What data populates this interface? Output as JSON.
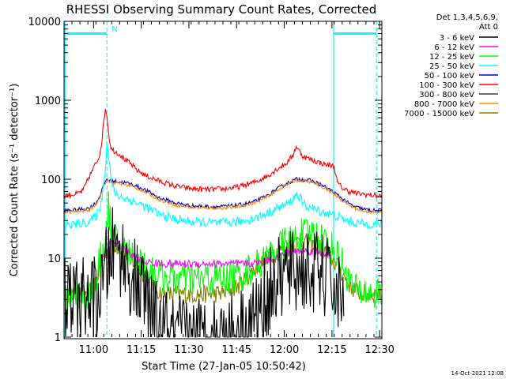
{
  "chart_data": {
    "type": "line",
    "title": "RHESSI Observing Summary Count Rates, Corrected",
    "xlabel": "Start Time (27-Jan-05 10:50:42)",
    "ylabel": "Corrected Count Rate (s⁻¹ detector⁻¹)",
    "y_scale": "log",
    "ylim": [
      1,
      10000
    ],
    "xlim_minutes": [
      0,
      100
    ],
    "x_ticks": [
      {
        "label": "11:00",
        "minute": 9.3
      },
      {
        "label": "11:15",
        "minute": 24.3
      },
      {
        "label": "11:30",
        "minute": 39.3
      },
      {
        "label": "11:45",
        "minute": 54.3
      },
      {
        "label": "12:00",
        "minute": 69.3
      },
      {
        "label": "12:15",
        "minute": 84.3
      },
      {
        "label": "12:30",
        "minute": 99.3
      }
    ],
    "y_ticks": [
      "1",
      "10",
      "100",
      "1000",
      "10000"
    ],
    "grid": false,
    "legend_header": [
      "Det 1,3,4,5,6,9,",
      "Att 0"
    ],
    "legend_position": "right",
    "series": [
      {
        "name": "3 - 6 keV",
        "color": "#000000",
        "x": [
          0,
          10,
          12,
          13.5,
          15,
          17,
          19,
          21,
          24,
          26,
          27,
          31,
          34,
          38,
          45,
          50,
          55,
          59,
          62,
          63,
          64,
          66,
          68,
          70,
          72,
          74,
          76,
          78,
          80,
          82,
          84,
          86,
          88,
          90,
          100
        ],
        "y": [
          3,
          3,
          4,
          8,
          13,
          13,
          9,
          6,
          4,
          3,
          1.8,
          1.3,
          1,
          1,
          1,
          1,
          1.3,
          1.6,
          2.2,
          3,
          3.5,
          4.5,
          5.5,
          6.2,
          6.8,
          6.9,
          6.8,
          6.6,
          6.3,
          5.8,
          5.0,
          3.5,
          2.5,
          null,
          null
        ]
      },
      {
        "name": "6 - 12 keV",
        "color": "#ff00ff",
        "x": [
          0,
          8,
          10,
          12,
          13.5,
          15,
          17,
          19,
          21,
          23,
          25,
          30,
          40,
          50,
          55,
          60,
          63,
          66,
          69,
          72,
          74,
          76,
          78,
          80,
          82,
          84,
          86,
          88,
          90,
          92,
          94,
          96,
          100
        ],
        "y": [
          null,
          null,
          null,
          10,
          13,
          17,
          15,
          13,
          11,
          10,
          9,
          8.5,
          8.5,
          8.5,
          8.5,
          8.6,
          9,
          10,
          11,
          12,
          12.3,
          12.4,
          12.3,
          12,
          11.5,
          10.5,
          null,
          null,
          null,
          null,
          null,
          null,
          null
        ]
      },
      {
        "name": "12 - 25 keV",
        "color": "#00ff00",
        "x": [
          0,
          8,
          10,
          11,
          12,
          13,
          13.5,
          14,
          15,
          17,
          19,
          21,
          24,
          27,
          30,
          35,
          40,
          45,
          50,
          55,
          58,
          61,
          64,
          66,
          68,
          70,
          72,
          74,
          76,
          78,
          80,
          82,
          84,
          86,
          88,
          90,
          92,
          96,
          100
        ],
        "y": [
          3.5,
          3.5,
          4,
          8,
          12,
          18,
          28,
          45,
          20,
          15,
          13,
          11,
          9,
          7,
          6,
          5.5,
          5.5,
          5.5,
          5.5,
          6,
          7,
          8,
          10,
          12,
          14,
          16,
          17,
          19,
          20,
          21,
          19,
          17,
          14,
          11,
          8,
          5,
          3.8,
          3.6,
          3.5
        ]
      },
      {
        "name": "25 - 50 keV",
        "color": "#00ffff",
        "x": [
          0,
          4,
          8,
          10,
          11,
          12,
          13,
          13.5,
          14,
          15,
          16,
          17,
          19,
          21,
          24,
          27,
          30,
          35,
          40,
          45,
          50,
          55,
          60,
          64,
          67,
          70,
          72,
          73,
          74,
          75,
          76,
          78,
          80,
          82,
          84,
          85,
          86,
          88,
          90,
          92,
          95,
          98,
          100
        ],
        "y": [
          26,
          27,
          29,
          34,
          40,
          60,
          150,
          290,
          200,
          85,
          68,
          62,
          58,
          54,
          48,
          42,
          36,
          31,
          29,
          28,
          28,
          29,
          32,
          37,
          43,
          48,
          55,
          65,
          60,
          50,
          46,
          43,
          40,
          38,
          36,
          35,
          34,
          31,
          29,
          28,
          27,
          27,
          27
        ]
      },
      {
        "name": "50 - 100 keV",
        "color": "#0000cc",
        "x": [
          0,
          4,
          8,
          10,
          11,
          12,
          13,
          13.5,
          14,
          15,
          17,
          19,
          21,
          24,
          27,
          30,
          35,
          40,
          45,
          50,
          55,
          60,
          64,
          67,
          70,
          72,
          73,
          74,
          76,
          78,
          80,
          82,
          84,
          86,
          88,
          90,
          92,
          95,
          98,
          100
        ],
        "y": [
          40,
          41,
          43,
          50,
          58,
          75,
          95,
          100,
          98,
          95,
          93,
          91,
          87,
          78,
          68,
          58,
          50,
          46,
          45,
          45,
          47,
          52,
          62,
          75,
          88,
          96,
          100,
          100,
          98,
          95,
          88,
          80,
          72,
          63,
          55,
          48,
          44,
          41,
          40,
          40
        ]
      },
      {
        "name": "100 - 300 keV",
        "color": "#ff0000",
        "x": [
          0,
          4,
          6,
          8,
          9,
          10,
          11,
          12,
          12.5,
          13,
          13.5,
          14,
          14.5,
          15,
          16,
          17,
          18,
          19,
          21,
          23,
          26,
          30,
          35,
          40,
          45,
          50,
          55,
          60,
          64,
          67,
          70,
          72,
          73,
          74,
          75,
          76,
          78,
          80,
          82,
          84,
          85,
          86,
          88,
          90,
          92,
          95,
          98,
          100
        ],
        "y": [
          62,
          65,
          72,
          110,
          130,
          160,
          190,
          320,
          550,
          780,
          650,
          400,
          280,
          240,
          225,
          215,
          200,
          180,
          155,
          130,
          110,
          95,
          82,
          76,
          74,
          75,
          80,
          92,
          110,
          135,
          160,
          200,
          260,
          230,
          200,
          190,
          175,
          165,
          155,
          150,
          145,
          90,
          75,
          70,
          66,
          64,
          62,
          61
        ]
      },
      {
        "name": "300 - 800 keV",
        "color": "#3c3c3c",
        "x": [],
        "y": []
      },
      {
        "name": "800 - 7000 keV",
        "color": "#ff8c00",
        "x": [
          0,
          4,
          8,
          10,
          11,
          12,
          13,
          13.5,
          14,
          15,
          17,
          19,
          21,
          24,
          27,
          30,
          35,
          40,
          45,
          50,
          55,
          60,
          64,
          67,
          70,
          72,
          73,
          74,
          76,
          78,
          80,
          82,
          84,
          86,
          88,
          90,
          92,
          95,
          98,
          100
        ],
        "y": [
          38,
          39,
          41,
          48,
          56,
          72,
          90,
          95,
          93,
          90,
          88,
          86,
          82,
          74,
          64,
          55,
          47,
          44,
          43,
          43,
          45,
          50,
          60,
          72,
          85,
          93,
          97,
          97,
          95,
          92,
          85,
          77,
          69,
          60,
          52,
          46,
          42,
          39,
          38,
          38
        ]
      },
      {
        "name": "7000 - 15000 keV",
        "color": "#808000",
        "x": [
          0,
          5,
          8,
          10,
          11,
          12,
          13,
          14,
          15,
          16,
          17,
          19,
          21,
          23,
          25,
          27,
          29,
          31,
          33,
          36,
          40,
          45,
          50,
          55,
          58,
          61,
          64,
          67,
          70,
          72,
          74,
          76,
          78,
          80,
          82,
          84,
          86,
          88,
          90,
          92,
          95,
          100
        ],
        "y": [
          3.5,
          3.5,
          3.6,
          5,
          7,
          9,
          11,
          13,
          15,
          15,
          14,
          12,
          10,
          8,
          6.5,
          5,
          4,
          3.5,
          3.5,
          3.5,
          3.5,
          3.5,
          3.6,
          4.5,
          6,
          8,
          10,
          12,
          14,
          15,
          16,
          16,
          15,
          14,
          12,
          10,
          8,
          6,
          4.5,
          3.8,
          3.5,
          3.5
        ]
      }
    ],
    "annotations": [
      {
        "text": "N",
        "color": "#00ffff",
        "x_minute": 14.5
      },
      {
        "type": "vline",
        "style": "dashed",
        "color": "#00ffff",
        "x_minute": 13.5
      },
      {
        "type": "vline",
        "style": "dashed",
        "color": "#00ffff",
        "x_minute": 98.3
      },
      {
        "type": "vline",
        "style": "solid",
        "color": "#00ffff",
        "x_minute": 0.3
      },
      {
        "type": "vline",
        "style": "solid",
        "color": "#00ffff",
        "x_minute": 84.8
      },
      {
        "type": "hbar",
        "color": "#00ffff",
        "x_range_minutes": [
          1,
          13.5
        ],
        "y_value": 7000
      },
      {
        "type": "hbar",
        "color": "#00ffff",
        "x_range_minutes": [
          85,
          98.3
        ],
        "y_value": 7000
      }
    ]
  },
  "footer": {
    "timestamp": "14-Oct-2021 12:08"
  }
}
